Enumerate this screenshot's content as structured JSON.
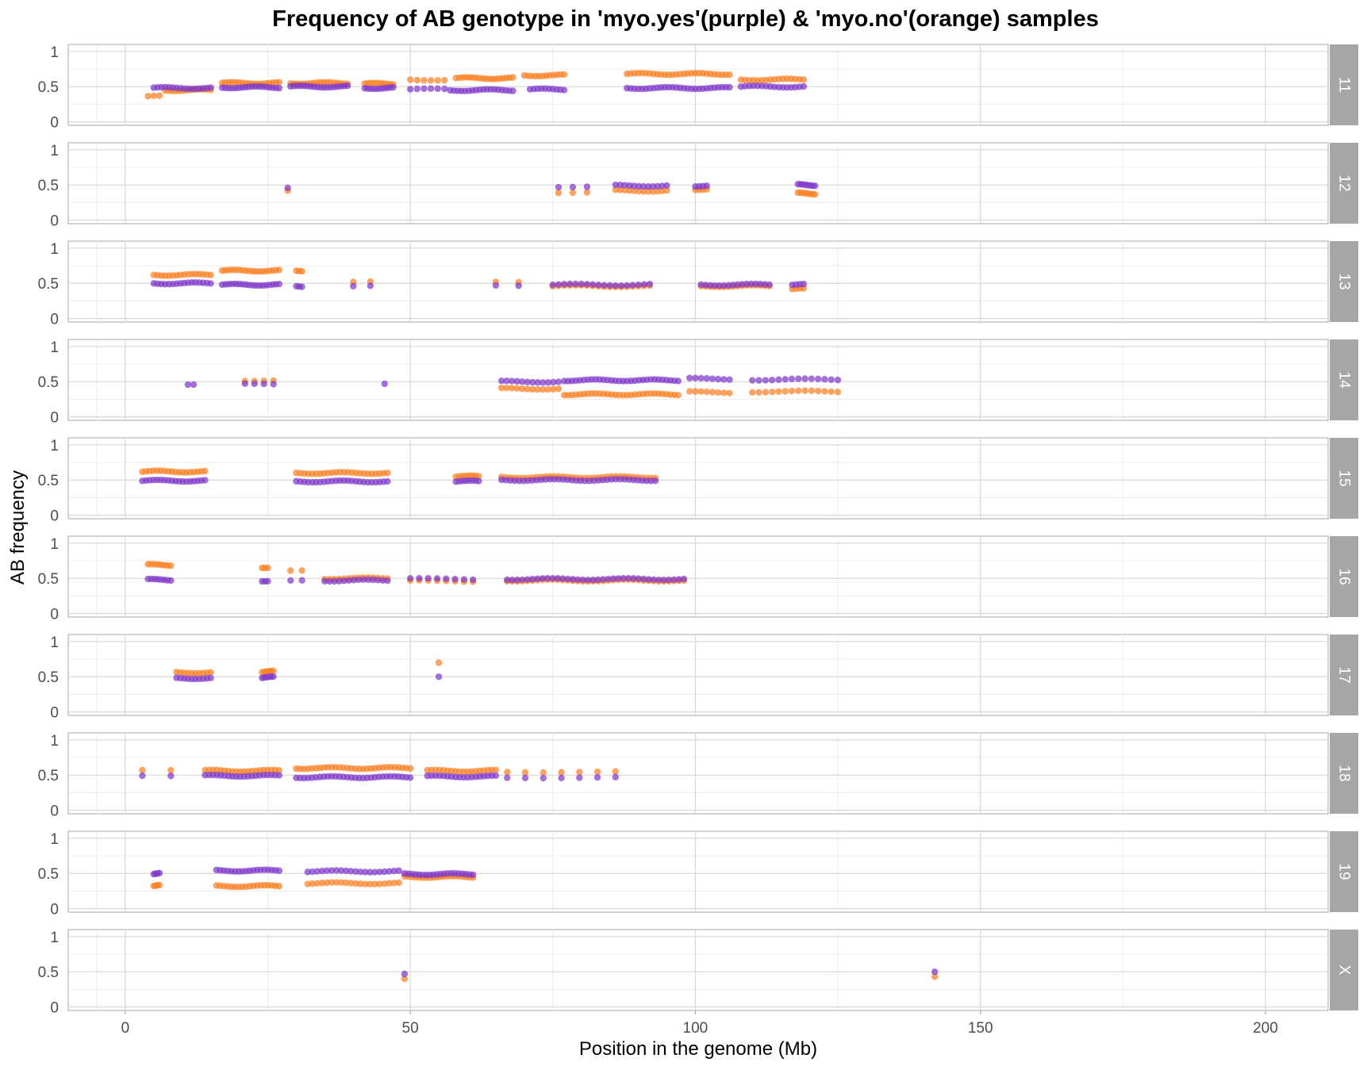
{
  "chart_data": {
    "type": "scatter",
    "title": "Frequency of AB genotype in 'myo.yes'(purple) & 'myo.no'(orange) samples",
    "xlabel": "Position in the genome (Mb)",
    "ylabel": "AB frequency",
    "xlim": [
      -10,
      211
    ],
    "ylim": [
      -0.05,
      1.1
    ],
    "xticks": [
      0,
      50,
      100,
      150,
      200
    ],
    "yticks": [
      0,
      0.5,
      1
    ],
    "ytick_labels": [
      "0",
      "0.5",
      "1"
    ],
    "grid": true,
    "colors": {
      "myo.yes": "#7F38C9",
      "myo.no": "#FA8022"
    },
    "panels": [
      {
        "label": "11",
        "segments": [
          {
            "series": "myo.no",
            "x0": 4,
            "x1": 6,
            "y": 0.36,
            "n": 3
          },
          {
            "series": "myo.no",
            "x0": 7,
            "x1": 15,
            "y": 0.45,
            "n": 14
          },
          {
            "series": "myo.yes",
            "x0": 5,
            "x1": 15,
            "y": 0.48,
            "n": 16
          },
          {
            "series": "myo.no",
            "x0": 17,
            "x1": 27,
            "y": 0.55,
            "n": 18
          },
          {
            "series": "myo.yes",
            "x0": 17,
            "x1": 27,
            "y": 0.49,
            "n": 18
          },
          {
            "series": "myo.no",
            "x0": 29,
            "x1": 39,
            "y": 0.55,
            "n": 18
          },
          {
            "series": "myo.yes",
            "x0": 29,
            "x1": 39,
            "y": 0.5,
            "n": 18
          },
          {
            "series": "myo.no",
            "x0": 42,
            "x1": 47,
            "y": 0.54,
            "n": 10
          },
          {
            "series": "myo.yes",
            "x0": 42,
            "x1": 47,
            "y": 0.48,
            "n": 10
          },
          {
            "series": "myo.no",
            "x0": 50,
            "x1": 56,
            "y": 0.6,
            "n": 6
          },
          {
            "series": "myo.yes",
            "x0": 50,
            "x1": 56,
            "y": 0.46,
            "n": 6
          },
          {
            "series": "myo.no",
            "x0": 58,
            "x1": 68,
            "y": 0.62,
            "n": 18
          },
          {
            "series": "myo.yes",
            "x0": 57,
            "x1": 68,
            "y": 0.45,
            "n": 18
          },
          {
            "series": "myo.no",
            "x0": 70,
            "x1": 77,
            "y": 0.66,
            "n": 12
          },
          {
            "series": "myo.yes",
            "x0": 71,
            "x1": 77,
            "y": 0.46,
            "n": 10
          },
          {
            "series": "myo.no",
            "x0": 88,
            "x1": 106,
            "y": 0.68,
            "n": 28
          },
          {
            "series": "myo.yes",
            "x0": 88,
            "x1": 106,
            "y": 0.48,
            "n": 28
          },
          {
            "series": "myo.no",
            "x0": 108,
            "x1": 119,
            "y": 0.6,
            "n": 16
          },
          {
            "series": "myo.yes",
            "x0": 108,
            "x1": 119,
            "y": 0.5,
            "n": 16
          }
        ]
      },
      {
        "label": "12",
        "segments": [
          {
            "series": "myo.no",
            "x0": 28.5,
            "x1": 28.5,
            "y": 0.42,
            "n": 1
          },
          {
            "series": "myo.yes",
            "x0": 28.5,
            "x1": 28.5,
            "y": 0.46,
            "n": 1
          },
          {
            "series": "myo.no",
            "x0": 76,
            "x1": 81,
            "y": 0.4,
            "n": 3
          },
          {
            "series": "myo.yes",
            "x0": 76,
            "x1": 81,
            "y": 0.48,
            "n": 3
          },
          {
            "series": "myo.no",
            "x0": 86,
            "x1": 95,
            "y": 0.42,
            "n": 12
          },
          {
            "series": "myo.yes",
            "x0": 86,
            "x1": 95,
            "y": 0.49,
            "n": 12
          },
          {
            "series": "myo.no",
            "x0": 100,
            "x1": 102,
            "y": 0.44,
            "n": 4
          },
          {
            "series": "myo.yes",
            "x0": 100,
            "x1": 102,
            "y": 0.49,
            "n": 4
          },
          {
            "series": "myo.no",
            "x0": 118,
            "x1": 121,
            "y": 0.38,
            "n": 8
          },
          {
            "series": "myo.yes",
            "x0": 118,
            "x1": 121,
            "y": 0.5,
            "n": 8
          }
        ]
      },
      {
        "label": "13",
        "segments": [
          {
            "series": "myo.no",
            "x0": 5,
            "x1": 15,
            "y": 0.62,
            "n": 16
          },
          {
            "series": "myo.yes",
            "x0": 5,
            "x1": 15,
            "y": 0.5,
            "n": 16
          },
          {
            "series": "myo.no",
            "x0": 17,
            "x1": 27,
            "y": 0.68,
            "n": 18
          },
          {
            "series": "myo.yes",
            "x0": 17,
            "x1": 27,
            "y": 0.48,
            "n": 18
          },
          {
            "series": "myo.no",
            "x0": 30,
            "x1": 31,
            "y": 0.68,
            "n": 3
          },
          {
            "series": "myo.yes",
            "x0": 30,
            "x1": 31,
            "y": 0.46,
            "n": 3
          },
          {
            "series": "myo.no",
            "x0": 40,
            "x1": 43,
            "y": 0.52,
            "n": 2
          },
          {
            "series": "myo.yes",
            "x0": 40,
            "x1": 43,
            "y": 0.46,
            "n": 2
          },
          {
            "series": "myo.no",
            "x0": 65,
            "x1": 69,
            "y": 0.52,
            "n": 2
          },
          {
            "series": "myo.yes",
            "x0": 65,
            "x1": 69,
            "y": 0.47,
            "n": 2
          },
          {
            "series": "myo.no",
            "x0": 75,
            "x1": 92,
            "y": 0.46,
            "n": 18
          },
          {
            "series": "myo.yes",
            "x0": 75,
            "x1": 92,
            "y": 0.48,
            "n": 18
          },
          {
            "series": "myo.no",
            "x0": 101,
            "x1": 113,
            "y": 0.46,
            "n": 16
          },
          {
            "series": "myo.yes",
            "x0": 101,
            "x1": 113,
            "y": 0.48,
            "n": 16
          },
          {
            "series": "myo.no",
            "x0": 117,
            "x1": 119,
            "y": 0.42,
            "n": 4
          },
          {
            "series": "myo.yes",
            "x0": 117,
            "x1": 119,
            "y": 0.48,
            "n": 4
          }
        ]
      },
      {
        "label": "14",
        "segments": [
          {
            "series": "myo.yes",
            "x0": 11,
            "x1": 12,
            "y": 0.47,
            "n": 2
          },
          {
            "series": "myo.no",
            "x0": 21,
            "x1": 26,
            "y": 0.52,
            "n": 4
          },
          {
            "series": "myo.yes",
            "x0": 21,
            "x1": 26,
            "y": 0.46,
            "n": 4
          },
          {
            "series": "myo.yes",
            "x0": 45.5,
            "x1": 45.5,
            "y": 0.47,
            "n": 1
          },
          {
            "series": "myo.no",
            "x0": 66,
            "x1": 76,
            "y": 0.4,
            "n": 12
          },
          {
            "series": "myo.yes",
            "x0": 66,
            "x1": 76,
            "y": 0.5,
            "n": 12
          },
          {
            "series": "myo.no",
            "x0": 77,
            "x1": 97,
            "y": 0.32,
            "n": 30
          },
          {
            "series": "myo.yes",
            "x0": 77,
            "x1": 97,
            "y": 0.52,
            "n": 30
          },
          {
            "series": "myo.no",
            "x0": 99,
            "x1": 106,
            "y": 0.35,
            "n": 8
          },
          {
            "series": "myo.yes",
            "x0": 99,
            "x1": 106,
            "y": 0.54,
            "n": 8
          },
          {
            "series": "myo.no",
            "x0": 110,
            "x1": 125,
            "y": 0.36,
            "n": 14
          },
          {
            "series": "myo.yes",
            "x0": 110,
            "x1": 125,
            "y": 0.53,
            "n": 14
          }
        ]
      },
      {
        "label": "15",
        "segments": [
          {
            "series": "myo.no",
            "x0": 3,
            "x1": 14,
            "y": 0.62,
            "n": 18
          },
          {
            "series": "myo.yes",
            "x0": 3,
            "x1": 14,
            "y": 0.49,
            "n": 18
          },
          {
            "series": "myo.no",
            "x0": 30,
            "x1": 46,
            "y": 0.6,
            "n": 24
          },
          {
            "series": "myo.yes",
            "x0": 30,
            "x1": 46,
            "y": 0.48,
            "n": 24
          },
          {
            "series": "myo.no",
            "x0": 58,
            "x1": 62,
            "y": 0.55,
            "n": 8
          },
          {
            "series": "myo.yes",
            "x0": 58,
            "x1": 62,
            "y": 0.48,
            "n": 8
          },
          {
            "series": "myo.no",
            "x0": 66,
            "x1": 93,
            "y": 0.54,
            "n": 36
          },
          {
            "series": "myo.yes",
            "x0": 66,
            "x1": 93,
            "y": 0.5,
            "n": 36
          }
        ]
      },
      {
        "label": "16",
        "segments": [
          {
            "series": "myo.no",
            "x0": 4,
            "x1": 8,
            "y": 0.69,
            "n": 8
          },
          {
            "series": "myo.yes",
            "x0": 4,
            "x1": 8,
            "y": 0.48,
            "n": 8
          },
          {
            "series": "myo.no",
            "x0": 24,
            "x1": 25,
            "y": 0.66,
            "n": 3
          },
          {
            "series": "myo.yes",
            "x0": 24,
            "x1": 25,
            "y": 0.47,
            "n": 3
          },
          {
            "series": "myo.no",
            "x0": 29,
            "x1": 31,
            "y": 0.6,
            "n": 2
          },
          {
            "series": "myo.yes",
            "x0": 29,
            "x1": 31,
            "y": 0.46,
            "n": 2
          },
          {
            "series": "myo.no",
            "x0": 35,
            "x1": 46,
            "y": 0.5,
            "n": 14
          },
          {
            "series": "myo.yes",
            "x0": 35,
            "x1": 46,
            "y": 0.47,
            "n": 14
          },
          {
            "series": "myo.no",
            "x0": 50,
            "x1": 61,
            "y": 0.46,
            "n": 8
          },
          {
            "series": "myo.yes",
            "x0": 50,
            "x1": 61,
            "y": 0.49,
            "n": 8
          },
          {
            "series": "myo.no",
            "x0": 67,
            "x1": 98,
            "y": 0.47,
            "n": 36
          },
          {
            "series": "myo.yes",
            "x0": 67,
            "x1": 98,
            "y": 0.49,
            "n": 36
          }
        ]
      },
      {
        "label": "17",
        "segments": [
          {
            "series": "myo.no",
            "x0": 9,
            "x1": 15,
            "y": 0.56,
            "n": 10
          },
          {
            "series": "myo.yes",
            "x0": 9,
            "x1": 15,
            "y": 0.48,
            "n": 10
          },
          {
            "series": "myo.no",
            "x0": 24,
            "x1": 26,
            "y": 0.57,
            "n": 6
          },
          {
            "series": "myo.yes",
            "x0": 24,
            "x1": 26,
            "y": 0.49,
            "n": 6
          },
          {
            "series": "myo.no",
            "x0": 55,
            "x1": 55,
            "y": 0.7,
            "n": 1
          },
          {
            "series": "myo.yes",
            "x0": 55,
            "x1": 55,
            "y": 0.5,
            "n": 1
          }
        ]
      },
      {
        "label": "18",
        "segments": [
          {
            "series": "myo.no",
            "x0": 3,
            "x1": 8,
            "y": 0.58,
            "n": 2
          },
          {
            "series": "myo.yes",
            "x0": 3,
            "x1": 8,
            "y": 0.5,
            "n": 2
          },
          {
            "series": "myo.no",
            "x0": 14,
            "x1": 27,
            "y": 0.56,
            "n": 20
          },
          {
            "series": "myo.yes",
            "x0": 14,
            "x1": 27,
            "y": 0.49,
            "n": 20
          },
          {
            "series": "myo.no",
            "x0": 30,
            "x1": 50,
            "y": 0.6,
            "n": 30
          },
          {
            "series": "myo.yes",
            "x0": 30,
            "x1": 50,
            "y": 0.47,
            "n": 30
          },
          {
            "series": "myo.no",
            "x0": 53,
            "x1": 65,
            "y": 0.56,
            "n": 18
          },
          {
            "series": "myo.yes",
            "x0": 53,
            "x1": 65,
            "y": 0.48,
            "n": 18
          },
          {
            "series": "myo.no",
            "x0": 67,
            "x1": 86,
            "y": 0.55,
            "n": 7
          },
          {
            "series": "myo.yes",
            "x0": 67,
            "x1": 86,
            "y": 0.47,
            "n": 7
          }
        ]
      },
      {
        "label": "19",
        "segments": [
          {
            "series": "myo.no",
            "x0": 5,
            "x1": 6,
            "y": 0.33,
            "n": 4
          },
          {
            "series": "myo.yes",
            "x0": 5,
            "x1": 6,
            "y": 0.5,
            "n": 4
          },
          {
            "series": "myo.no",
            "x0": 16,
            "x1": 27,
            "y": 0.32,
            "n": 18
          },
          {
            "series": "myo.yes",
            "x0": 16,
            "x1": 27,
            "y": 0.54,
            "n": 18
          },
          {
            "series": "myo.no",
            "x0": 32,
            "x1": 48,
            "y": 0.36,
            "n": 20
          },
          {
            "series": "myo.yes",
            "x0": 32,
            "x1": 48,
            "y": 0.53,
            "n": 20
          },
          {
            "series": "myo.no",
            "x0": 49,
            "x1": 61,
            "y": 0.45,
            "n": 20
          },
          {
            "series": "myo.yes",
            "x0": 49,
            "x1": 61,
            "y": 0.49,
            "n": 20
          }
        ]
      },
      {
        "label": "X",
        "segments": [
          {
            "series": "myo.no",
            "x0": 49,
            "x1": 49,
            "y": 0.4,
            "n": 1
          },
          {
            "series": "myo.yes",
            "x0": 49,
            "x1": 49,
            "y": 0.47,
            "n": 1
          },
          {
            "series": "myo.no",
            "x0": 142,
            "x1": 142,
            "y": 0.43,
            "n": 1
          },
          {
            "series": "myo.yes",
            "x0": 142,
            "x1": 142,
            "y": 0.5,
            "n": 1
          }
        ]
      }
    ]
  }
}
